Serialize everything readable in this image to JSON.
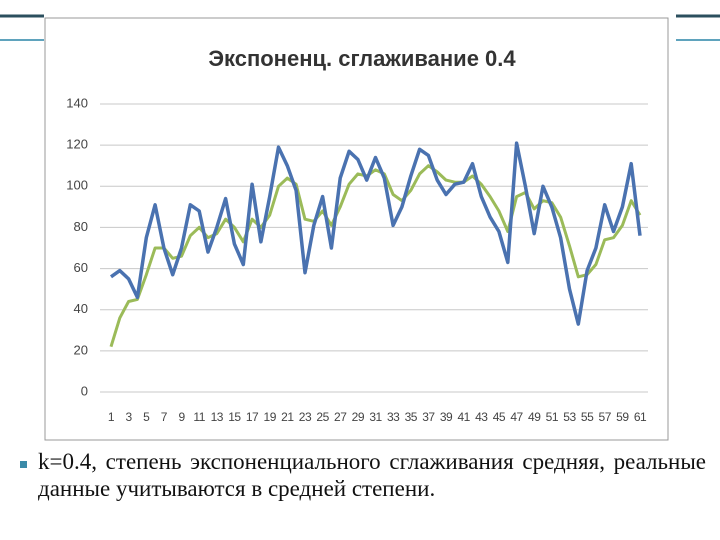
{
  "chart_data": {
    "type": "line",
    "title": "Экспоненц. сглаживание 0.4",
    "categories": [
      "1",
      null,
      "3",
      null,
      "5",
      null,
      "7",
      null,
      "9",
      null,
      "11",
      null,
      "13",
      null,
      "15",
      null,
      "17",
      null,
      "19",
      null,
      "21",
      null,
      "23",
      null,
      "25",
      null,
      "27",
      null,
      "29",
      null,
      "31",
      null,
      "33",
      null,
      "35",
      null,
      "37",
      null,
      "39",
      null,
      "41",
      null,
      "43",
      null,
      "45",
      null,
      "47",
      null,
      "49",
      null,
      "51",
      null,
      "53",
      null,
      "55",
      null,
      "57",
      null,
      "59",
      null,
      "61"
    ],
    "series": [
      {
        "color": "#4a72b0",
        "values": [
          56,
          59,
          55,
          46,
          75,
          91,
          70,
          57,
          70,
          91,
          88,
          68,
          80,
          94,
          72,
          62,
          101,
          73,
          95,
          119,
          110,
          98,
          58,
          81,
          95,
          70,
          104,
          117,
          113,
          103,
          114,
          104,
          81,
          90,
          105,
          118,
          115,
          103,
          96,
          101,
          102,
          111,
          95,
          85,
          78,
          63,
          121,
          100,
          77,
          100,
          90,
          75,
          50,
          33,
          59,
          70,
          91,
          78,
          90,
          111,
          76
        ]
      },
      {
        "color": "#9bbb59",
        "values": [
          22,
          36,
          44,
          45,
          57,
          70,
          70,
          65,
          66,
          76,
          80,
          75,
          77,
          84,
          80,
          73,
          84,
          80,
          86,
          100,
          104,
          101,
          84,
          83,
          88,
          81,
          90,
          101,
          106,
          105,
          108,
          106,
          96,
          93,
          98,
          106,
          110,
          107,
          103,
          102,
          102,
          105,
          101,
          95,
          88,
          78,
          95,
          97,
          89,
          93,
          92,
          85,
          71,
          56,
          57,
          62,
          74,
          75,
          81,
          93,
          86
        ]
      }
    ],
    "ylim": [
      0,
      140
    ],
    "yticks": [
      0,
      20,
      40,
      60,
      80,
      100,
      120,
      140
    ],
    "grid": true
  },
  "bullet": "k=0.4, степень экспоненциального сглаживания средняя, реальные данные учитываются в средней степени."
}
